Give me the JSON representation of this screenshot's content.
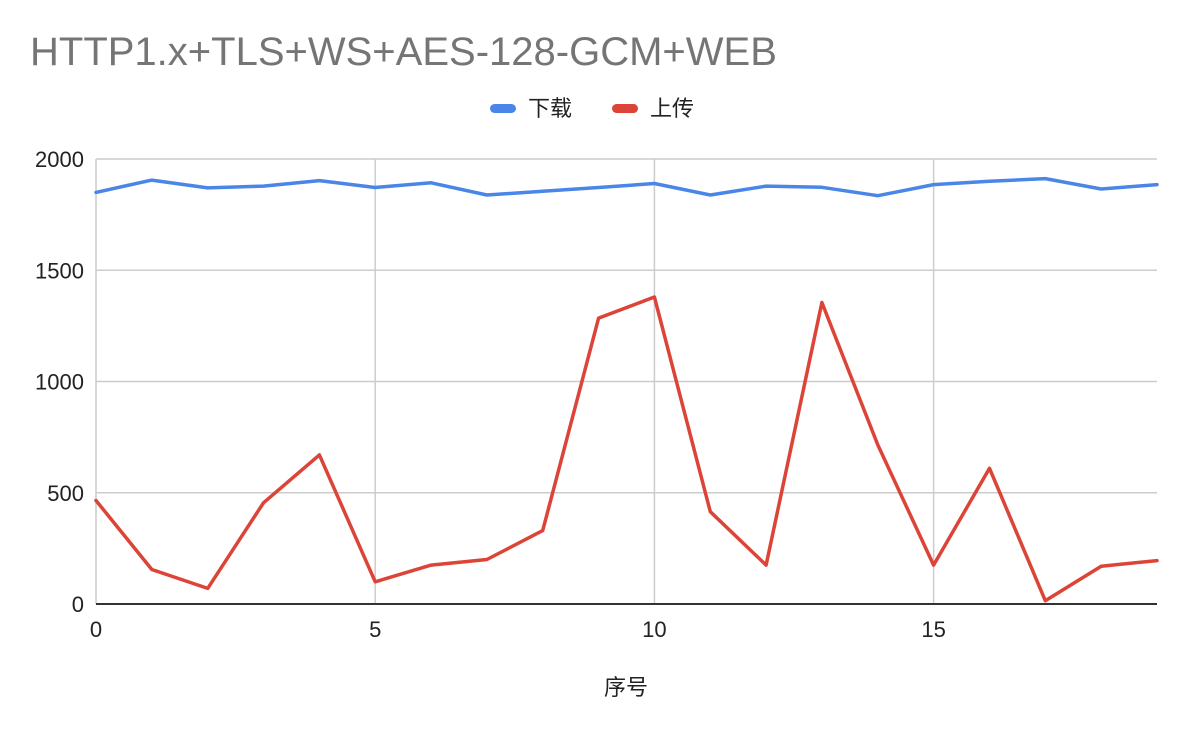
{
  "chart_data": {
    "type": "line",
    "title": "HTTP1.x+TLS+WS+AES-128-GCM+WEB",
    "xlabel": "序号",
    "ylabel": "",
    "x": [
      0,
      1,
      2,
      3,
      4,
      5,
      6,
      7,
      8,
      9,
      10,
      11,
      12,
      13,
      14,
      15,
      16,
      17,
      18,
      19
    ],
    "xlim": [
      0,
      19
    ],
    "ylim": [
      0,
      2000
    ],
    "x_ticks": [
      0,
      5,
      10,
      15
    ],
    "y_ticks": [
      0,
      500,
      1000,
      1500,
      2000
    ],
    "grid": true,
    "legend_position": "top",
    "series": [
      {
        "name": "下载",
        "color": "#4a86e8",
        "values": [
          1850,
          1905,
          1870,
          1878,
          1903,
          1872,
          1893,
          1838,
          1855,
          1872,
          1890,
          1838,
          1878,
          1873,
          1835,
          1885,
          1900,
          1912,
          1865,
          1885
        ]
      },
      {
        "name": "上传",
        "color": "#dc4437",
        "values": [
          465,
          155,
          70,
          455,
          670,
          100,
          175,
          200,
          330,
          1285,
          1380,
          415,
          175,
          1355,
          715,
          175,
          610,
          15,
          170,
          195
        ]
      }
    ]
  }
}
